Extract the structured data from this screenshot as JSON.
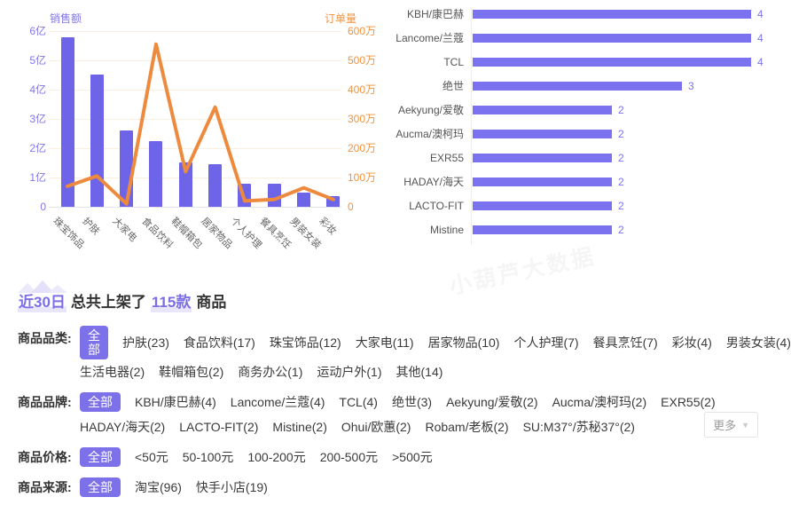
{
  "watermark": "小葫芦大数据",
  "colors": {
    "bar_purple": "#6e64e7",
    "hbar_purple": "#7a72ee",
    "line_orange": "#ee8a3e",
    "axis_purple": "#8277e8",
    "axis_orange": "#f0933f",
    "accent_chip": "#7c71e8",
    "highlight_lavender": "#e9e6fb",
    "grid_peach": "#fbefdf",
    "value_label_purple": "#7b74ee"
  },
  "chart_data": [
    {
      "type": "bar+line",
      "categories": [
        "珠宝饰品",
        "护肤",
        "大家电",
        "食品饮料",
        "鞋帽箱包",
        "居家物品",
        "个人护理",
        "餐具烹饪",
        "男装女装",
        "彩妆"
      ],
      "left_axis": {
        "title": "销售额",
        "unit": "亿",
        "max": 6,
        "ticks": [
          "6亿",
          "5亿",
          "4亿",
          "3亿",
          "2亿",
          "1亿",
          "0"
        ]
      },
      "right_axis": {
        "title": "订单量",
        "unit": "万",
        "max": 600,
        "ticks": [
          "600万",
          "500万",
          "400万",
          "300万",
          "200万",
          "100万",
          "0"
        ]
      },
      "series": [
        {
          "name": "销售额",
          "kind": "bar",
          "axis": "left",
          "values": [
            5.8,
            4.5,
            2.62,
            2.25,
            1.5,
            1.45,
            0.8,
            0.78,
            0.48,
            0.35
          ]
        },
        {
          "name": "订单量",
          "kind": "line",
          "axis": "right",
          "values": [
            70,
            105,
            10,
            555,
            120,
            340,
            20,
            25,
            65,
            25
          ]
        }
      ],
      "grid": true,
      "legend_position": "none"
    },
    {
      "type": "bar-horizontal",
      "title": "",
      "xlim": [
        0,
        4.1
      ],
      "items": [
        {
          "label": "KBH/康巴赫",
          "value": 4
        },
        {
          "label": "Lancome/兰蔻",
          "value": 4
        },
        {
          "label": "TCL",
          "value": 4
        },
        {
          "label": "绝世",
          "value": 3
        },
        {
          "label": "Aekyung/爱敬",
          "value": 2
        },
        {
          "label": "Aucma/澳柯玛",
          "value": 2
        },
        {
          "label": "EXR55",
          "value": 2
        },
        {
          "label": "HADAY/海天",
          "value": 2
        },
        {
          "label": "LACTO-FIT",
          "value": 2
        },
        {
          "label": "Mistine",
          "value": 2
        }
      ]
    }
  ],
  "summary": {
    "range": "近30日",
    "middle": "总共上架了",
    "count": "115款",
    "suffix": "商品"
  },
  "filters": [
    {
      "name": "category",
      "label": "商品品类:",
      "all": "全部",
      "rows": [
        [
          "护肤(23)",
          "食品饮料(17)",
          "珠宝饰品(12)",
          "大家电(11)",
          "居家物品(10)",
          "个人护理(7)",
          "餐具烹饪(7)",
          "彩妆(4)",
          "男装女装(4)"
        ],
        [
          "生活电器(2)",
          "鞋帽箱包(2)",
          "商务办公(1)",
          "运动户外(1)",
          "其他(14)"
        ]
      ]
    },
    {
      "name": "brand",
      "label": "商品品牌:",
      "all": "全部",
      "rows": [
        [
          "KBH/康巴赫(4)",
          "Lancome/兰蔻(4)",
          "TCL(4)",
          "绝世(3)",
          "Aekyung/爱敬(2)",
          "Aucma/澳柯玛(2)",
          "EXR55(2)"
        ],
        [
          "HADAY/海天(2)",
          "LACTO-FIT(2)",
          "Mistine(2)",
          "Ohui/欧蕙(2)",
          "Robam/老板(2)",
          "SU:M37°/苏秘37°(2)"
        ]
      ],
      "more_label": "更多",
      "more_icon": "▼"
    },
    {
      "name": "price",
      "label": "商品价格:",
      "all": "全部",
      "rows": [
        [
          "<50元",
          "50-100元",
          "100-200元",
          "200-500元",
          ">500元"
        ]
      ]
    },
    {
      "name": "source",
      "label": "商品来源:",
      "all": "全部",
      "rows": [
        [
          "淘宝(96)",
          "快手小店(19)"
        ]
      ]
    }
  ]
}
